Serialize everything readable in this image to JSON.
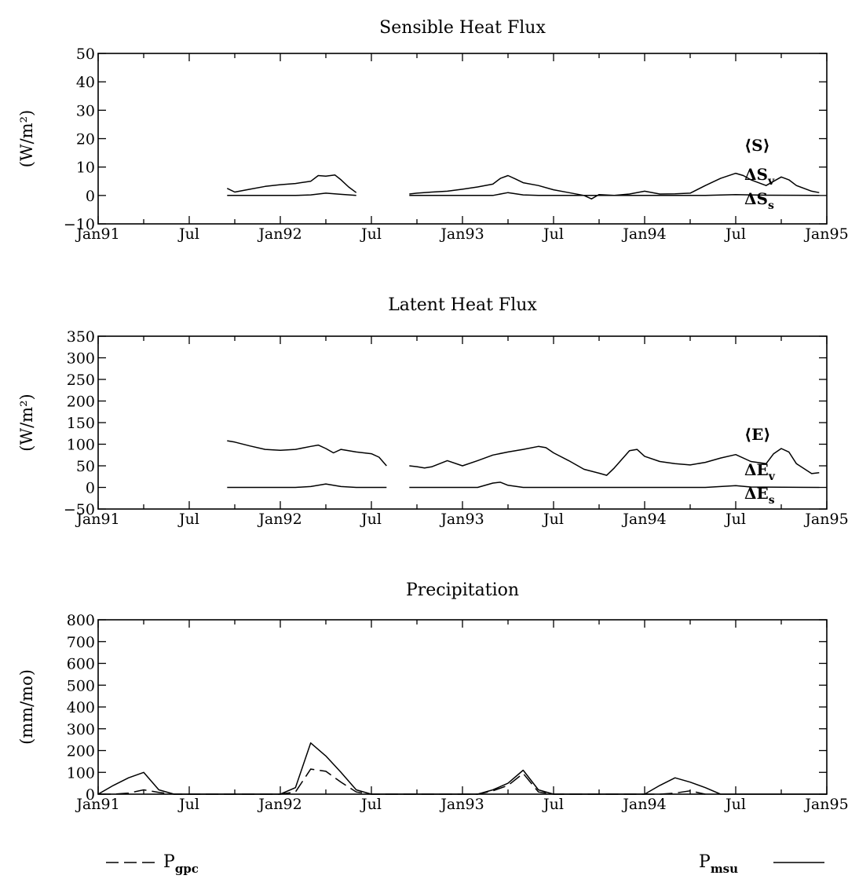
{
  "x_ticks": [
    "Jan91",
    "Jul",
    "Jan92",
    "Jul",
    "Jan93",
    "Jul",
    "Jan94",
    "Jul",
    "Jan95"
  ],
  "chart_data": [
    {
      "type": "line",
      "title": "Sensible Heat Flux",
      "ylabel": "(W/m²)",
      "ylim": [
        -10,
        50
      ],
      "yticks": [
        -10,
        0,
        10,
        20,
        30,
        40,
        50
      ],
      "xlim": [
        0,
        48
      ],
      "x_unit": "months since Jan91",
      "legend": [
        {
          "base": "⟨S⟩",
          "sub": ""
        },
        {
          "base": "ΔS",
          "sub": "v"
        },
        {
          "base": "ΔS",
          "sub": "s"
        }
      ],
      "series": [
        {
          "name": "ΔS_v",
          "segments": [
            [
              [
                8.5,
                2.5
              ],
              [
                9,
                1.2
              ],
              [
                10,
                2.2
              ],
              [
                11,
                3.2
              ],
              [
                12,
                3.8
              ],
              [
                13,
                4.2
              ],
              [
                14,
                5
              ],
              [
                14.5,
                7
              ],
              [
                15,
                6.8
              ],
              [
                15.6,
                7.2
              ],
              [
                16,
                5.5
              ],
              [
                16.5,
                3
              ],
              [
                17,
                1
              ]
            ],
            [
              [
                20.5,
                0.5
              ],
              [
                21,
                0.8
              ],
              [
                22,
                1.2
              ],
              [
                23,
                1.5
              ],
              [
                24,
                2.2
              ],
              [
                25,
                3
              ],
              [
                26,
                4
              ],
              [
                26.5,
                6
              ],
              [
                27,
                7
              ],
              [
                27.5,
                5.8
              ],
              [
                28,
                4.5
              ],
              [
                29,
                3.5
              ],
              [
                30,
                2
              ],
              [
                31,
                1
              ],
              [
                32,
                0
              ],
              [
                32.5,
                -1.2
              ],
              [
                33,
                0.3
              ],
              [
                34,
                0
              ],
              [
                35,
                0.5
              ],
              [
                36,
                1.5
              ],
              [
                37,
                0.5
              ],
              [
                38,
                0.6
              ],
              [
                39,
                0.8
              ],
              [
                40,
                3.5
              ],
              [
                41,
                6
              ],
              [
                42,
                7.8
              ],
              [
                42.5,
                7
              ],
              [
                43,
                5.5
              ],
              [
                44,
                3.5
              ],
              [
                45,
                6.5
              ],
              [
                45.5,
                5.5
              ],
              [
                46,
                3.5
              ],
              [
                47,
                1.5
              ],
              [
                47.5,
                1
              ]
            ]
          ]
        },
        {
          "name": "ΔS_s",
          "segments": [
            [
              [
                8.5,
                0
              ],
              [
                13,
                0
              ],
              [
                14,
                0.2
              ],
              [
                15,
                0.8
              ],
              [
                16,
                0.4
              ],
              [
                17,
                0
              ]
            ],
            [
              [
                20.5,
                0
              ],
              [
                26,
                0
              ],
              [
                27,
                1
              ],
              [
                28,
                0.2
              ],
              [
                29,
                0
              ],
              [
                40,
                0
              ],
              [
                42,
                0.3
              ],
              [
                44,
                0.1
              ],
              [
                47.5,
                0
              ]
            ]
          ]
        }
      ]
    },
    {
      "type": "line",
      "title": "Latent Heat Flux",
      "ylabel": "(W/m²)",
      "ylim": [
        -50,
        350
      ],
      "yticks": [
        -50,
        0,
        50,
        100,
        150,
        200,
        250,
        300,
        350
      ],
      "xlim": [
        0,
        48
      ],
      "x_unit": "months since Jan91",
      "legend": [
        {
          "base": "⟨E⟩",
          "sub": ""
        },
        {
          "base": "ΔE",
          "sub": "v"
        },
        {
          "base": "ΔE",
          "sub": "s"
        }
      ],
      "series": [
        {
          "name": "ΔE_v",
          "segments": [
            [
              [
                8.5,
                108
              ],
              [
                9,
                105
              ],
              [
                10,
                96
              ],
              [
                11,
                88
              ],
              [
                12,
                86
              ],
              [
                13,
                88
              ],
              [
                14,
                95
              ],
              [
                14.5,
                98
              ],
              [
                15,
                90
              ],
              [
                15.5,
                80
              ],
              [
                16,
                88
              ],
              [
                17,
                82
              ],
              [
                18,
                78
              ],
              [
                18.5,
                70
              ],
              [
                19,
                50
              ]
            ],
            [
              [
                20.5,
                50
              ],
              [
                21,
                48
              ],
              [
                21.5,
                45
              ],
              [
                22,
                48
              ],
              [
                23,
                62
              ],
              [
                24,
                50
              ],
              [
                25,
                62
              ],
              [
                26,
                75
              ],
              [
                27,
                82
              ],
              [
                28,
                88
              ],
              [
                29,
                95
              ],
              [
                29.5,
                92
              ],
              [
                30,
                80
              ],
              [
                31,
                62
              ],
              [
                32,
                42
              ],
              [
                33,
                33
              ],
              [
                33.5,
                28
              ],
              [
                34,
                45
              ],
              [
                35,
                85
              ],
              [
                35.5,
                88
              ],
              [
                36,
                72
              ],
              [
                37,
                60
              ],
              [
                38,
                55
              ],
              [
                39,
                52
              ],
              [
                40,
                58
              ],
              [
                41,
                68
              ],
              [
                42,
                76
              ],
              [
                43,
                60
              ],
              [
                44,
                55
              ],
              [
                44.5,
                78
              ],
              [
                45,
                90
              ],
              [
                45.5,
                82
              ],
              [
                46,
                55
              ],
              [
                47,
                32
              ],
              [
                47.5,
                34
              ]
            ]
          ]
        },
        {
          "name": "ΔE_s",
          "segments": [
            [
              [
                8.5,
                0
              ],
              [
                13,
                0
              ],
              [
                14,
                2
              ],
              [
                15,
                8
              ],
              [
                16,
                2
              ],
              [
                17,
                0
              ],
              [
                19,
                0
              ]
            ],
            [
              [
                20.5,
                0
              ],
              [
                25,
                0
              ],
              [
                26,
                10
              ],
              [
                26.5,
                12
              ],
              [
                27,
                5
              ],
              [
                28,
                0
              ],
              [
                40,
                0
              ],
              [
                42,
                4
              ],
              [
                43,
                1
              ],
              [
                47.5,
                0
              ]
            ]
          ]
        }
      ]
    },
    {
      "type": "line",
      "title": "Precipitation",
      "ylabel": "(mm/mo)",
      "ylim": [
        0,
        800
      ],
      "yticks": [
        0,
        100,
        200,
        300,
        400,
        500,
        600,
        700,
        800
      ],
      "xlim": [
        0,
        48
      ],
      "x_unit": "months since Jan91",
      "legend": [
        {
          "base": "P",
          "sub": "gpc"
        },
        {
          "base": "P",
          "sub": "msu"
        }
      ],
      "series": [
        {
          "name": "P_msu",
          "style": "solid",
          "values": [
            [
              0,
              0
            ],
            [
              1,
              40
            ],
            [
              2,
              75
            ],
            [
              3,
              100
            ],
            [
              4,
              20
            ],
            [
              5,
              0
            ],
            [
              12,
              0
            ],
            [
              13,
              30
            ],
            [
              14,
              235
            ],
            [
              15,
              175
            ],
            [
              16,
              100
            ],
            [
              17,
              20
            ],
            [
              18,
              0
            ],
            [
              25,
              0
            ],
            [
              26,
              20
            ],
            [
              27,
              50
            ],
            [
              28,
              110
            ],
            [
              29,
              20
            ],
            [
              30,
              0
            ],
            [
              36,
              0
            ],
            [
              37,
              40
            ],
            [
              38,
              75
            ],
            [
              39,
              55
            ],
            [
              40,
              30
            ],
            [
              41,
              0
            ],
            [
              48,
              0
            ]
          ]
        },
        {
          "name": "P_gpc",
          "style": "dashed",
          "values": [
            [
              0,
              0
            ],
            [
              1,
              0
            ],
            [
              2,
              5
            ],
            [
              3,
              20
            ],
            [
              4,
              8
            ],
            [
              5,
              0
            ],
            [
              12,
              0
            ],
            [
              13,
              10
            ],
            [
              14,
              115
            ],
            [
              15,
              105
            ],
            [
              16,
              55
            ],
            [
              17,
              10
            ],
            [
              18,
              0
            ],
            [
              25,
              0
            ],
            [
              26,
              15
            ],
            [
              27,
              40
            ],
            [
              28,
              95
            ],
            [
              29,
              10
            ],
            [
              30,
              0
            ],
            [
              36,
              0
            ],
            [
              37,
              0
            ],
            [
              38,
              5
            ],
            [
              39,
              15
            ],
            [
              40,
              0
            ]
          ]
        }
      ]
    }
  ]
}
